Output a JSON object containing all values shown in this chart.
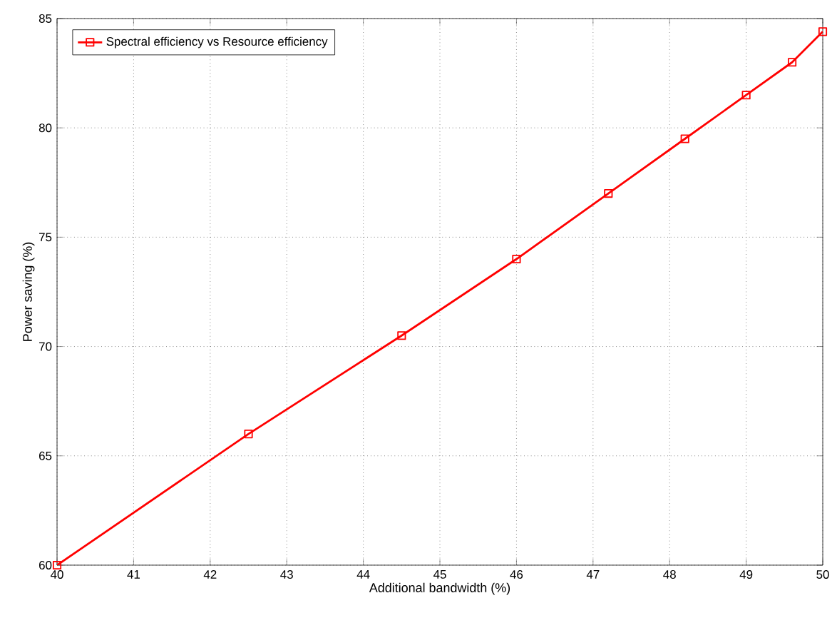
{
  "chart_data": {
    "type": "line",
    "xlabel": "Additional bandwidth (%)",
    "ylabel": "Power saving (%)",
    "x": [
      40,
      42.5,
      44.5,
      46,
      47.2,
      48.2,
      49,
      49.6,
      50
    ],
    "series": [
      {
        "name": "Spectral efficiency vs Resource efficiency",
        "color": "#ff0000",
        "values": [
          60,
          66,
          70.5,
          74,
          77,
          79.5,
          81.5,
          83,
          84.4
        ]
      }
    ],
    "xlim": [
      40,
      50
    ],
    "ylim": [
      60,
      85
    ],
    "xticks": [
      40,
      41,
      42,
      43,
      44,
      45,
      46,
      47,
      48,
      49,
      50
    ],
    "yticks": [
      60,
      65,
      70,
      75,
      80,
      85
    ],
    "grid": true,
    "legend": "top left",
    "marker": "square",
    "line_style": "solid"
  }
}
